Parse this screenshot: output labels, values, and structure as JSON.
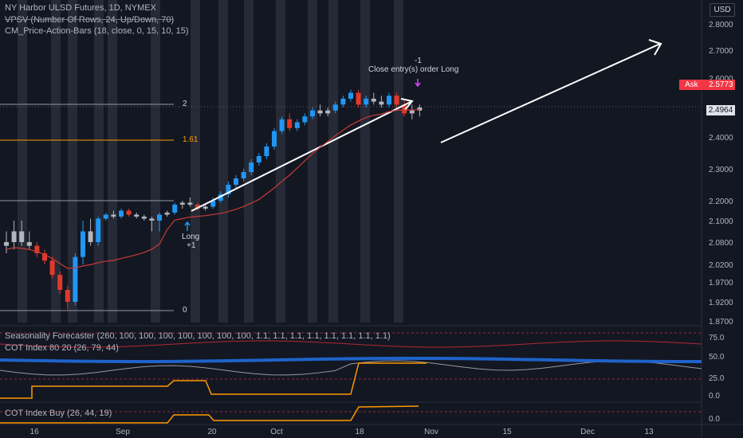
{
  "header": {
    "symbol_line": "NY Harbor ULSD Futures, 1D, NYMEX",
    "indicator_vpsv": "VPSV (Number Of Rows, 24, Up/Down, 70)",
    "indicator_cm": "CM_Price-Action-Bars (18, close, 0, 15, 10, 15)",
    "currency": "USD"
  },
  "price_axis": {
    "ticks": [
      "2.8000",
      "2.7000",
      "2.6000",
      "2.4000",
      "2.3000",
      "2.2000",
      "2.1000",
      "2.0800",
      "2.0200",
      "1.9700",
      "1.9200",
      "1.8700"
    ],
    "ask_label": "Ask",
    "ask_value": "2.5773",
    "last_value": "2.4964"
  },
  "fib_levels": {
    "level_2": "2",
    "level_161": "1.61",
    "level_0": "0"
  },
  "annotations": {
    "close_count": "-1",
    "close_text": "Close entry(s) order Long",
    "long_text": "Long",
    "long_count": "+1"
  },
  "panes": {
    "seasonality": "Seasonality Forecaster (260, 100, 100, 100, 100, 100, 100, 100, 1.1, 1.1, 1.1, 1.1, 1.1, 1.1, 1.1, 1.1)",
    "cot_80_20": "COT Index 80 20 (26, 79, 44)",
    "cot_80_20_ticks": [
      "75.0",
      "50.0",
      "25.0",
      "0.0"
    ],
    "cot_buy": "COT Index Buy (26, 44, 19)",
    "cot_buy_ticks": [
      "0.0"
    ]
  },
  "time_axis": [
    "16",
    "Sep",
    "20",
    "Oct",
    "18",
    "Nov",
    "15",
    "Dec",
    "13"
  ],
  "colors": {
    "bg": "#131722",
    "up": "#2196f3",
    "down": "#e0392b",
    "neutral": "#b2b5be",
    "ask": "#f23645",
    "fib161": "#ff9800",
    "ma": "#c93a36"
  },
  "chart_data": {
    "type": "candlestick",
    "title": "NY Harbor ULSD Futures, 1D, NYMEX",
    "candles_ohlc": [
      [
        2.07,
        2.09,
        2.05,
        2.08
      ],
      [
        2.08,
        2.1,
        2.06,
        2.09
      ],
      [
        2.09,
        2.1,
        2.07,
        2.08
      ],
      [
        2.08,
        2.09,
        2.06,
        2.07
      ],
      [
        2.07,
        2.08,
        2.04,
        2.05
      ],
      [
        2.05,
        2.06,
        2.02,
        2.03
      ],
      [
        2.03,
        2.04,
        1.98,
        1.99
      ],
      [
        1.99,
        2.0,
        1.94,
        1.95
      ],
      [
        1.95,
        1.96,
        1.9,
        1.92
      ],
      [
        1.92,
        2.05,
        1.91,
        2.04
      ],
      [
        2.04,
        2.1,
        2.02,
        2.09
      ],
      [
        2.09,
        2.11,
        2.07,
        2.08
      ],
      [
        2.08,
        2.12,
        2.07,
        2.11
      ],
      [
        2.11,
        2.14,
        2.1,
        2.13
      ],
      [
        2.13,
        2.15,
        2.11,
        2.12
      ],
      [
        2.12,
        2.16,
        2.11,
        2.15
      ],
      [
        2.15,
        2.16,
        2.12,
        2.13
      ],
      [
        2.13,
        2.14,
        2.11,
        2.12
      ],
      [
        2.12,
        2.13,
        2.1,
        2.11
      ],
      [
        2.11,
        2.12,
        2.09,
        2.1
      ],
      [
        2.1,
        2.14,
        2.09,
        2.13
      ],
      [
        2.13,
        2.15,
        2.12,
        2.14
      ],
      [
        2.14,
        2.19,
        2.13,
        2.18
      ],
      [
        2.18,
        2.2,
        2.16,
        2.19
      ],
      [
        2.19,
        2.21,
        2.17,
        2.18
      ],
      [
        2.18,
        2.19,
        2.15,
        2.16
      ],
      [
        2.16,
        2.18,
        2.15,
        2.17
      ],
      [
        2.17,
        2.21,
        2.16,
        2.2
      ],
      [
        2.2,
        2.23,
        2.19,
        2.22
      ],
      [
        2.22,
        2.26,
        2.21,
        2.25
      ],
      [
        2.25,
        2.28,
        2.24,
        2.27
      ],
      [
        2.27,
        2.3,
        2.26,
        2.29
      ],
      [
        2.29,
        2.33,
        2.28,
        2.32
      ],
      [
        2.32,
        2.35,
        2.31,
        2.34
      ],
      [
        2.34,
        2.38,
        2.33,
        2.37
      ],
      [
        2.37,
        2.43,
        2.36,
        2.42
      ],
      [
        2.42,
        2.47,
        2.41,
        2.46
      ],
      [
        2.46,
        2.48,
        2.42,
        2.43
      ],
      [
        2.43,
        2.46,
        2.42,
        2.45
      ],
      [
        2.45,
        2.48,
        2.44,
        2.47
      ],
      [
        2.47,
        2.5,
        2.46,
        2.49
      ],
      [
        2.49,
        2.51,
        2.47,
        2.48
      ],
      [
        2.48,
        2.5,
        2.47,
        2.49
      ],
      [
        2.49,
        2.52,
        2.48,
        2.51
      ],
      [
        2.51,
        2.54,
        2.5,
        2.53
      ],
      [
        2.53,
        2.56,
        2.52,
        2.55
      ],
      [
        2.55,
        2.56,
        2.5,
        2.51
      ],
      [
        2.51,
        2.54,
        2.5,
        2.53
      ],
      [
        2.53,
        2.55,
        2.51,
        2.52
      ],
      [
        2.52,
        2.54,
        2.5,
        2.51
      ],
      [
        2.51,
        2.55,
        2.5,
        2.54
      ],
      [
        2.54,
        2.55,
        2.5,
        2.51
      ],
      [
        2.51,
        2.53,
        2.47,
        2.48
      ],
      [
        2.48,
        2.51,
        2.46,
        2.49
      ],
      [
        2.49,
        2.51,
        2.47,
        2.5
      ]
    ],
    "ylim": [
      1.87,
      2.82
    ]
  }
}
